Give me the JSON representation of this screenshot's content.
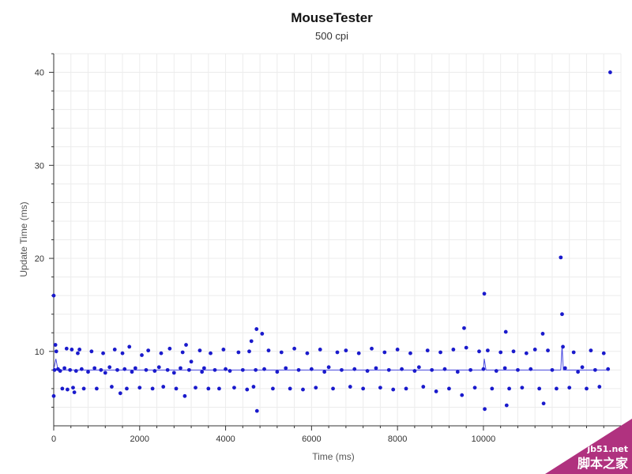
{
  "chart_data": {
    "type": "scatter",
    "title": "MouseTester",
    "subtitle": "500 cpi",
    "xlabel": "Time (ms)",
    "ylabel": "Update Time (ms)",
    "xlim": [
      0,
      13200
    ],
    "ylim": [
      2,
      42
    ],
    "xticks": [
      0,
      2000,
      4000,
      6000,
      8000,
      10000
    ],
    "xtick_labels": [
      "0",
      "2000",
      "4000",
      "6000",
      "8000",
      "10000"
    ],
    "yticks": [
      10,
      20,
      30,
      40
    ],
    "ytick_labels": [
      "10",
      "20",
      "30",
      "40"
    ],
    "grid": true,
    "legend": "none",
    "colors": {
      "points": "#1a1acc",
      "line": "#4a4ae0",
      "grid": "#ececec",
      "axis": "#333333"
    },
    "series": [
      {
        "type": "scatter",
        "points": [
          [
            0,
            16.0
          ],
          [
            0,
            5.2
          ],
          [
            40,
            10.7
          ],
          [
            20,
            8.0
          ],
          [
            60,
            10.0
          ],
          [
            100,
            8.1
          ],
          [
            150,
            7.9
          ],
          [
            200,
            6.0
          ],
          [
            250,
            8.2
          ],
          [
            300,
            10.3
          ],
          [
            320,
            5.9
          ],
          [
            380,
            8.0
          ],
          [
            420,
            10.2
          ],
          [
            450,
            6.1
          ],
          [
            480,
            5.6
          ],
          [
            520,
            7.9
          ],
          [
            560,
            9.8
          ],
          [
            600,
            10.2
          ],
          [
            650,
            8.1
          ],
          [
            700,
            6.0
          ],
          [
            800,
            7.8
          ],
          [
            880,
            10.0
          ],
          [
            950,
            8.2
          ],
          [
            1000,
            6.0
          ],
          [
            1100,
            8.0
          ],
          [
            1150,
            9.8
          ],
          [
            1200,
            7.7
          ],
          [
            1300,
            8.3
          ],
          [
            1350,
            6.2
          ],
          [
            1420,
            10.2
          ],
          [
            1480,
            8.0
          ],
          [
            1550,
            5.5
          ],
          [
            1600,
            9.8
          ],
          [
            1650,
            8.1
          ],
          [
            1700,
            6.0
          ],
          [
            1760,
            10.5
          ],
          [
            1820,
            7.8
          ],
          [
            1900,
            8.2
          ],
          [
            2000,
            6.1
          ],
          [
            2050,
            9.6
          ],
          [
            2150,
            8.0
          ],
          [
            2200,
            10.1
          ],
          [
            2300,
            6.0
          ],
          [
            2350,
            7.9
          ],
          [
            2450,
            8.3
          ],
          [
            2500,
            9.8
          ],
          [
            2550,
            6.2
          ],
          [
            2650,
            8.0
          ],
          [
            2700,
            10.3
          ],
          [
            2800,
            7.7
          ],
          [
            2850,
            6.0
          ],
          [
            2950,
            8.2
          ],
          [
            3000,
            9.9
          ],
          [
            3050,
            5.2
          ],
          [
            3080,
            10.7
          ],
          [
            3150,
            8.0
          ],
          [
            3200,
            8.9
          ],
          [
            3300,
            6.1
          ],
          [
            3400,
            10.1
          ],
          [
            3450,
            7.8
          ],
          [
            3500,
            8.2
          ],
          [
            3600,
            6.0
          ],
          [
            3650,
            9.8
          ],
          [
            3750,
            8.0
          ],
          [
            3850,
            6.0
          ],
          [
            3950,
            10.2
          ],
          [
            4000,
            8.1
          ],
          [
            4100,
            7.9
          ],
          [
            4200,
            6.1
          ],
          [
            4300,
            9.9
          ],
          [
            4400,
            8.0
          ],
          [
            4500,
            5.9
          ],
          [
            4550,
            10.0
          ],
          [
            4600,
            11.1
          ],
          [
            4650,
            6.2
          ],
          [
            4700,
            8.0
          ],
          [
            4720,
            12.4
          ],
          [
            4730,
            3.6
          ],
          [
            4850,
            11.9
          ],
          [
            4900,
            8.1
          ],
          [
            5000,
            10.1
          ],
          [
            5100,
            6.0
          ],
          [
            5200,
            7.8
          ],
          [
            5300,
            9.9
          ],
          [
            5400,
            8.2
          ],
          [
            5500,
            6.0
          ],
          [
            5600,
            10.3
          ],
          [
            5700,
            8.0
          ],
          [
            5800,
            5.9
          ],
          [
            5900,
            9.8
          ],
          [
            6000,
            8.1
          ],
          [
            6100,
            6.1
          ],
          [
            6200,
            10.2
          ],
          [
            6300,
            7.8
          ],
          [
            6400,
            8.3
          ],
          [
            6500,
            6.0
          ],
          [
            6600,
            9.9
          ],
          [
            6700,
            8.0
          ],
          [
            6800,
            10.1
          ],
          [
            6900,
            6.2
          ],
          [
            7000,
            8.1
          ],
          [
            7100,
            9.8
          ],
          [
            7200,
            6.0
          ],
          [
            7300,
            7.9
          ],
          [
            7400,
            10.3
          ],
          [
            7500,
            8.2
          ],
          [
            7600,
            6.1
          ],
          [
            7700,
            9.9
          ],
          [
            7800,
            8.0
          ],
          [
            7900,
            5.9
          ],
          [
            8000,
            10.2
          ],
          [
            8100,
            8.1
          ],
          [
            8200,
            6.0
          ],
          [
            8300,
            9.8
          ],
          [
            8400,
            7.9
          ],
          [
            8500,
            8.3
          ],
          [
            8600,
            6.2
          ],
          [
            8700,
            10.1
          ],
          [
            8800,
            8.0
          ],
          [
            8900,
            5.7
          ],
          [
            9000,
            9.9
          ],
          [
            9100,
            8.1
          ],
          [
            9200,
            6.0
          ],
          [
            9300,
            10.2
          ],
          [
            9400,
            7.8
          ],
          [
            9500,
            5.3
          ],
          [
            9550,
            12.5
          ],
          [
            9600,
            10.4
          ],
          [
            9700,
            8.0
          ],
          [
            9800,
            6.1
          ],
          [
            9900,
            10.0
          ],
          [
            10000,
            8.1
          ],
          [
            10020,
            16.2
          ],
          [
            10030,
            3.8
          ],
          [
            10100,
            10.1
          ],
          [
            10200,
            6.0
          ],
          [
            10300,
            7.9
          ],
          [
            10400,
            9.9
          ],
          [
            10500,
            8.2
          ],
          [
            10520,
            12.1
          ],
          [
            10540,
            4.2
          ],
          [
            10600,
            6.0
          ],
          [
            10700,
            10.0
          ],
          [
            10800,
            8.0
          ],
          [
            10900,
            6.1
          ],
          [
            11000,
            9.8
          ],
          [
            11100,
            8.1
          ],
          [
            11200,
            10.2
          ],
          [
            11300,
            6.0
          ],
          [
            11380,
            11.9
          ],
          [
            11400,
            4.4
          ],
          [
            11500,
            10.1
          ],
          [
            11600,
            8.0
          ],
          [
            11700,
            6.0
          ],
          [
            11800,
            20.1
          ],
          [
            11830,
            14.0
          ],
          [
            11850,
            10.5
          ],
          [
            11900,
            8.2
          ],
          [
            12000,
            6.1
          ],
          [
            12100,
            9.9
          ],
          [
            12200,
            7.8
          ],
          [
            12300,
            8.3
          ],
          [
            12400,
            6.0
          ],
          [
            12500,
            10.1
          ],
          [
            12600,
            8.0
          ],
          [
            12700,
            6.2
          ],
          [
            12800,
            9.8
          ],
          [
            12900,
            8.1
          ],
          [
            12950,
            40.0
          ]
        ]
      },
      {
        "type": "line",
        "points": [
          [
            0,
            8.0
          ],
          [
            50,
            9.2
          ],
          [
            100,
            8.0
          ],
          [
            10000,
            8.0
          ],
          [
            10020,
            9.2
          ],
          [
            10060,
            8.0
          ],
          [
            11800,
            8.0
          ],
          [
            11830,
            10.6
          ],
          [
            11860,
            8.0
          ],
          [
            12900,
            8.0
          ]
        ]
      }
    ]
  },
  "watermark": {
    "text": "jb51.net",
    "text2": "脚本之家"
  }
}
